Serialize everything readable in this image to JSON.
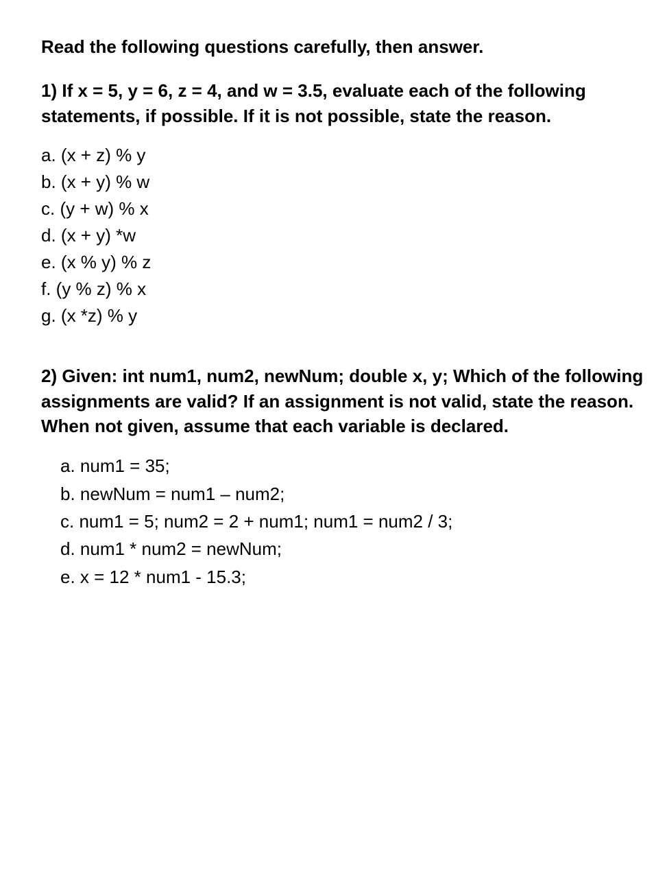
{
  "instruction": "Read the following questions carefully, then answer.",
  "q1": {
    "header": "1) If x = 5, y = 6, z = 4, and w = 3.5, evaluate each of the following statements, if possible. If it is not possible, state the reason.",
    "options": [
      "a. (x + z) % y",
      "b. (x + y) % w",
      "c. (y + w) % x",
      "d. (x + y) *w",
      "e. (x % y) % z",
      "f. (y % z) % x",
      "g. (x *z) % y"
    ]
  },
  "q2": {
    "header": "2) Given: int num1, num2, newNum; double x, y; Which of the following assignments are valid? If an assignment is not valid, state the reason. When not given, assume that each variable is declared.",
    "options": [
      "a. num1 = 35;",
      "b. newNum = num1 – num2;",
      "c. num1 = 5; num2 = 2 + num1; num1 = num2 / 3;",
      "d. num1 * num2 = newNum;",
      "e. x = 12 * num1 - 15.3;"
    ]
  }
}
